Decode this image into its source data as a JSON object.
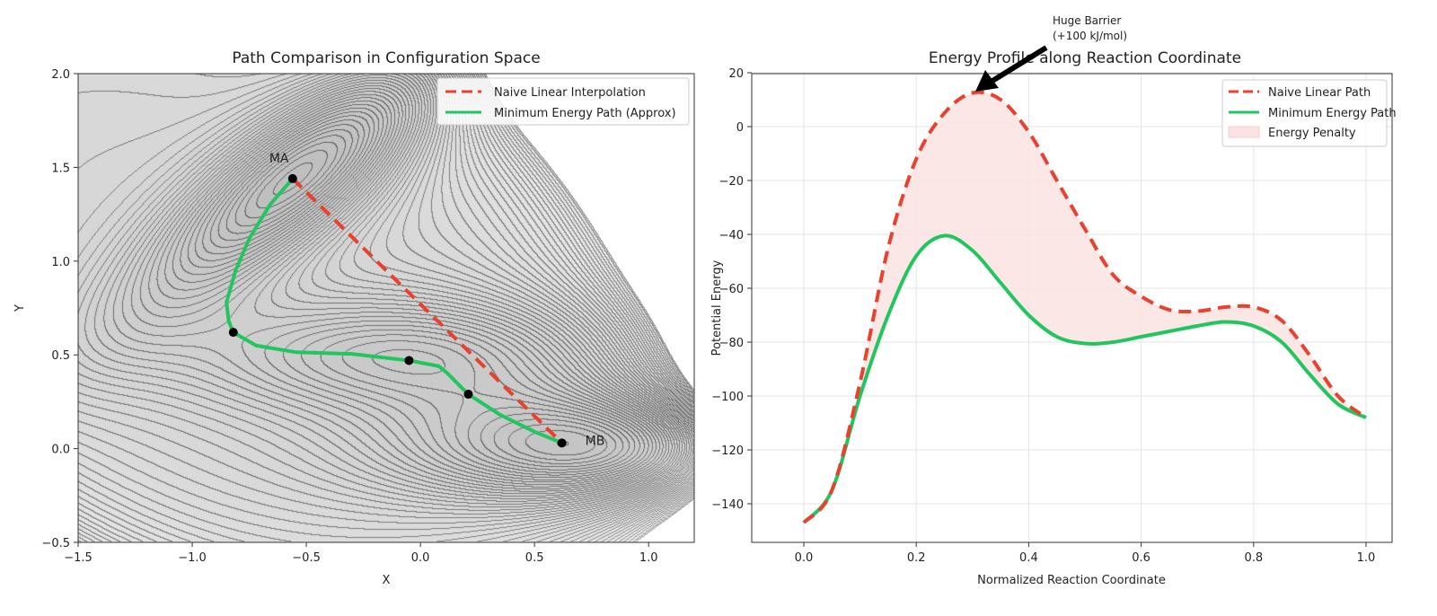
{
  "chart_data": [
    {
      "type": "contour",
      "title": "Path Comparison in Configuration Space",
      "xlabel": "X",
      "ylabel": "Y",
      "xlim": [
        -1.5,
        1.2
      ],
      "ylim": [
        -0.5,
        2.0
      ],
      "xticks": [
        "−1.5",
        "−1.0",
        "−0.5",
        "0.0",
        "0.5",
        "1.0"
      ],
      "xtick_values": [
        -1.5,
        -1.0,
        -0.5,
        0.0,
        0.5,
        1.0
      ],
      "yticks": [
        "−0.5",
        "0.0",
        "0.5",
        "1.0",
        "1.5",
        "2.0"
      ],
      "ytick_values": [
        -0.5,
        0.0,
        0.5,
        1.0,
        1.5,
        2.0
      ],
      "grid": false,
      "legend_placement": "top-right",
      "surface": "Müller-Brown potential (grey filled contours)",
      "annotations": [
        {
          "text": "MA",
          "x": -0.56,
          "y": 1.44
        },
        {
          "text": "MB",
          "x": 0.62,
          "y": 0.03
        }
      ],
      "series": [
        {
          "name": "Naive Linear Interpolation",
          "style": "dashed",
          "color": "#e8412e",
          "x": [
            -0.56,
            0.62
          ],
          "y": [
            1.44,
            0.03
          ]
        },
        {
          "name": "Minimum Energy Path (Approx)",
          "style": "solid",
          "color": "#22c55e",
          "x": [
            -0.56,
            -0.66,
            -0.75,
            -0.81,
            -0.85,
            -0.84,
            -0.82,
            -0.72,
            -0.55,
            -0.3,
            -0.05,
            0.08,
            0.12,
            0.16,
            0.21,
            0.35,
            0.5,
            0.62
          ],
          "y": [
            1.44,
            1.3,
            1.12,
            0.95,
            0.78,
            0.68,
            0.62,
            0.55,
            0.515,
            0.505,
            0.47,
            0.44,
            0.4,
            0.35,
            0.29,
            0.18,
            0.09,
            0.03
          ]
        }
      ],
      "points": {
        "x": [
          -0.56,
          -0.82,
          -0.05,
          0.21,
          0.62
        ],
        "y": [
          1.44,
          0.62,
          0.47,
          0.29,
          0.03
        ]
      }
    },
    {
      "type": "line",
      "title": "Energy Profile along Reaction Coordinate",
      "xlabel": "Normalized Reaction Coordinate",
      "ylabel": "Potential Energy",
      "xlim": [
        -0.09,
        1.05
      ],
      "ylim": [
        -154,
        20
      ],
      "xticks": [
        "0.0",
        "0.2",
        "0.4",
        "0.6",
        "0.8",
        "1.0"
      ],
      "xtick_values": [
        0.0,
        0.2,
        0.4,
        0.6,
        0.8,
        1.0
      ],
      "yticks": [
        "20",
        "0",
        "−20",
        "−40",
        "−60",
        "−80",
        "−100",
        "−120",
        "−140"
      ],
      "ytick_values": [
        20,
        0,
        -20,
        -40,
        -60,
        -80,
        -100,
        -120,
        -140
      ],
      "grid": true,
      "legend_placement": "top-right",
      "x": [
        0,
        0.05,
        0.1,
        0.15,
        0.2,
        0.25,
        0.3,
        0.35,
        0.4,
        0.45,
        0.5,
        0.55,
        0.6,
        0.65,
        0.7,
        0.75,
        0.8,
        0.85,
        0.9,
        0.95,
        1.0
      ],
      "series": [
        {
          "name": "Naive Linear Path",
          "style": "dashed",
          "color": "#e8412e",
          "values": [
            -147,
            -135,
            -95,
            -45,
            -12,
            5,
            12.5,
            10,
            -2,
            -20,
            -38,
            -55,
            -63,
            -68,
            -68.5,
            -67,
            -67,
            -72,
            -85,
            -100,
            -108
          ]
        },
        {
          "name": "Minimum Energy Path",
          "style": "solid",
          "color": "#22c55e",
          "values": [
            -147,
            -135,
            -100,
            -70,
            -48,
            -40.5,
            -46,
            -58,
            -70,
            -78,
            -80.5,
            -80,
            -78,
            -76,
            -74,
            -72.5,
            -74,
            -80,
            -92,
            -103,
            -108
          ]
        }
      ],
      "fill": {
        "name": "Energy Penalty",
        "color": "#fbe3e3"
      },
      "annotation": {
        "text_line1": "Huge Barrier",
        "text_line2": "(+100 kJ/mol)",
        "x": 0.3,
        "y": 12.5
      }
    }
  ]
}
